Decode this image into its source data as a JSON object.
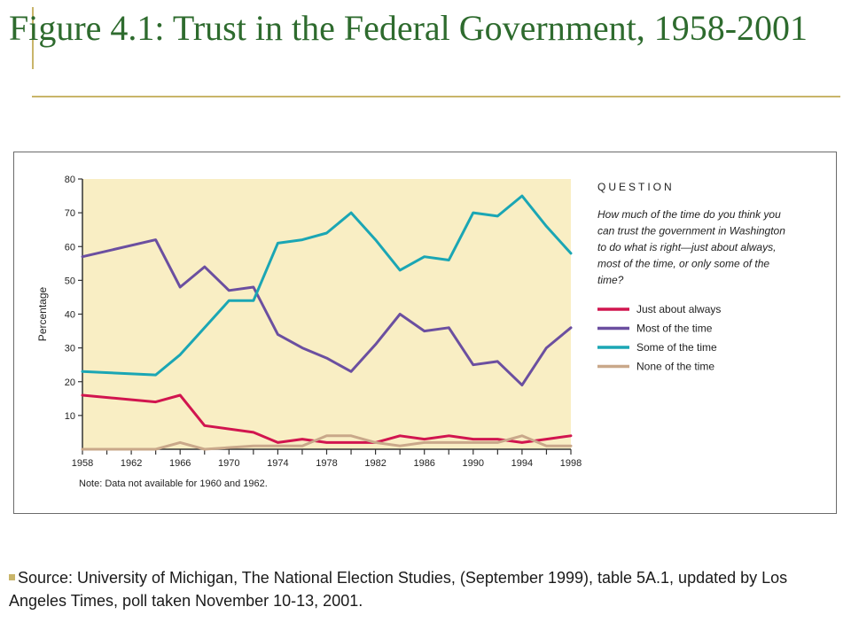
{
  "slide": {
    "title": "Figure 4.1: Trust in the Federal Government, 1958-2001",
    "source": "Source: University of Michigan, The National Election Studies, (September 1999), table 5A.1, updated by Los Angeles Times, poll taken November 10-13, 2001."
  },
  "colors": {
    "title": "#2e6b2e",
    "accent": "#c9b56a",
    "plot_bg": "#f9eec4",
    "axis": "#333333"
  },
  "chart_data": {
    "type": "line",
    "title": "",
    "xlabel": "",
    "ylabel": "Percentage",
    "xlim": [
      1958,
      1998
    ],
    "ylim": [
      0,
      80
    ],
    "xticks": [
      "1958",
      "1962",
      "1966",
      "1970",
      "1974",
      "1978",
      "1982",
      "1986",
      "1990",
      "1994",
      "1998"
    ],
    "yticks": [
      "10",
      "20",
      "30",
      "40",
      "50",
      "60",
      "70",
      "80"
    ],
    "note": "Note:  Data not available for 1960 and 1962.",
    "question_heading": "QUESTION",
    "question_text": [
      "How much of the time do you think you",
      "can trust the government in Washington",
      "to do what is right—just about always,",
      "most of the time, or only some of the",
      "time?"
    ],
    "legend_position": "right",
    "series": [
      {
        "name": "Just about always",
        "color": "#d1154f",
        "x": [
          1958,
          1964,
          1966,
          1968,
          1972,
          1974,
          1976,
          1978,
          1980,
          1982,
          1984,
          1986,
          1988,
          1990,
          1992,
          1994,
          1996,
          1998
        ],
        "y": [
          16,
          14,
          16,
          7,
          5,
          2,
          3,
          2,
          2,
          2,
          4,
          3,
          4,
          3,
          3,
          2,
          3,
          4
        ]
      },
      {
        "name": "Most of the time",
        "color": "#6b4fa0",
        "x": [
          1958,
          1964,
          1966,
          1968,
          1970,
          1972,
          1974,
          1976,
          1978,
          1980,
          1982,
          1984,
          1986,
          1988,
          1990,
          1992,
          1994,
          1996,
          1998
        ],
        "y": [
          57,
          62,
          48,
          54,
          47,
          48,
          34,
          30,
          27,
          23,
          31,
          40,
          35,
          36,
          25,
          26,
          19,
          30,
          36
        ]
      },
      {
        "name": "Some of the time",
        "color": "#1ba6b4",
        "x": [
          1958,
          1964,
          1966,
          1968,
          1970,
          1972,
          1974,
          1976,
          1978,
          1980,
          1982,
          1984,
          1986,
          1988,
          1990,
          1992,
          1994,
          1996,
          1998
        ],
        "y": [
          23,
          22,
          28,
          36,
          44,
          44,
          61,
          62,
          64,
          70,
          62,
          53,
          57,
          56,
          70,
          69,
          75,
          66,
          58
        ]
      },
      {
        "name": "None of the time",
        "color": "#c9a88a",
        "x": [
          1958,
          1964,
          1966,
          1968,
          1972,
          1974,
          1976,
          1978,
          1980,
          1982,
          1984,
          1986,
          1988,
          1990,
          1992,
          1994,
          1996,
          1998
        ],
        "y": [
          0,
          0,
          2,
          0,
          1,
          1,
          1,
          4,
          4,
          2,
          1,
          2,
          2,
          2,
          2,
          4,
          1,
          1
        ]
      }
    ]
  }
}
